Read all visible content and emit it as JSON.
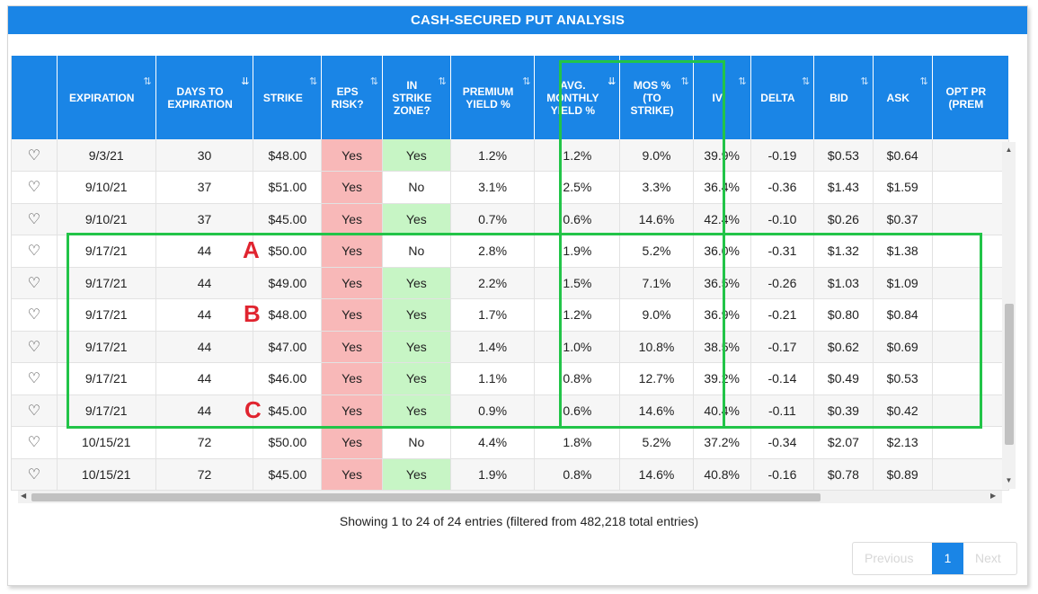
{
  "title": "CASH-SECURED PUT ANALYSIS",
  "colors": {
    "header_blue": "#1a85e6",
    "risk_red": "#f8b8b8",
    "zone_green": "#c7f5c5",
    "highlight_green": "#22c448",
    "letter_red": "#e0242f"
  },
  "columns": [
    {
      "label": "",
      "sort": ""
    },
    {
      "label": "EXPIRATION",
      "sort": "⇅"
    },
    {
      "label": "DAYS TO EXPIRATION",
      "sort": "⇊"
    },
    {
      "label": "STRIKE",
      "sort": "⇅"
    },
    {
      "label": "EPS RISK?",
      "sort": "⇅"
    },
    {
      "label": "IN STRIKE ZONE?",
      "sort": "⇅"
    },
    {
      "label": "PREMIUM YIELD %",
      "sort": "⇅"
    },
    {
      "label": "AVG. MONTHLY YIELD %",
      "sort": "⇊"
    },
    {
      "label": "MOS % (TO STRIKE)",
      "sort": "⇅"
    },
    {
      "label": "IV",
      "sort": "⇅"
    },
    {
      "label": "DELTA",
      "sort": "⇅"
    },
    {
      "label": "BID",
      "sort": "⇅"
    },
    {
      "label": "ASK",
      "sort": "⇅"
    },
    {
      "label": "OPT PR (PREM",
      "sort": ""
    }
  ],
  "rows": [
    [
      "9/3/21",
      "30",
      "$48.00",
      "Yes",
      "Yes",
      "1.2%",
      "1.2%",
      "9.0%",
      "39.9%",
      "-0.19",
      "$0.53",
      "$0.64"
    ],
    [
      "9/10/21",
      "37",
      "$51.00",
      "Yes",
      "No",
      "3.1%",
      "2.5%",
      "3.3%",
      "36.4%",
      "-0.36",
      "$1.43",
      "$1.59"
    ],
    [
      "9/10/21",
      "37",
      "$45.00",
      "Yes",
      "Yes",
      "0.7%",
      "0.6%",
      "14.6%",
      "42.4%",
      "-0.10",
      "$0.26",
      "$0.37"
    ],
    [
      "9/17/21",
      "44",
      "$50.00",
      "Yes",
      "No",
      "2.8%",
      "1.9%",
      "5.2%",
      "36.0%",
      "-0.31",
      "$1.32",
      "$1.38"
    ],
    [
      "9/17/21",
      "44",
      "$49.00",
      "Yes",
      "Yes",
      "2.2%",
      "1.5%",
      "7.1%",
      "36.5%",
      "-0.26",
      "$1.03",
      "$1.09"
    ],
    [
      "9/17/21",
      "44",
      "$48.00",
      "Yes",
      "Yes",
      "1.7%",
      "1.2%",
      "9.0%",
      "36.9%",
      "-0.21",
      "$0.80",
      "$0.84"
    ],
    [
      "9/17/21",
      "44",
      "$47.00",
      "Yes",
      "Yes",
      "1.4%",
      "1.0%",
      "10.8%",
      "38.5%",
      "-0.17",
      "$0.62",
      "$0.69"
    ],
    [
      "9/17/21",
      "44",
      "$46.00",
      "Yes",
      "Yes",
      "1.1%",
      "0.8%",
      "12.7%",
      "39.2%",
      "-0.14",
      "$0.49",
      "$0.53"
    ],
    [
      "9/17/21",
      "44",
      "$45.00",
      "Yes",
      "Yes",
      "0.9%",
      "0.6%",
      "14.6%",
      "40.4%",
      "-0.11",
      "$0.39",
      "$0.42"
    ],
    [
      "10/15/21",
      "72",
      "$50.00",
      "Yes",
      "No",
      "4.4%",
      "1.8%",
      "5.2%",
      "37.2%",
      "-0.34",
      "$2.07",
      "$2.13"
    ],
    [
      "10/15/21",
      "72",
      "$45.00",
      "Yes",
      "Yes",
      "1.9%",
      "0.8%",
      "14.6%",
      "40.8%",
      "-0.16",
      "$0.78",
      "$0.89"
    ]
  ],
  "info_text": "Showing 1 to 24 of 24 entries (filtered from 482,218 total entries)",
  "pagination": {
    "previous": "Previous",
    "page": "1",
    "next": "Next"
  },
  "annotations": {
    "a": "A",
    "b": "B",
    "c": "C"
  },
  "icons": {
    "favorite": "heart-outline-icon"
  }
}
